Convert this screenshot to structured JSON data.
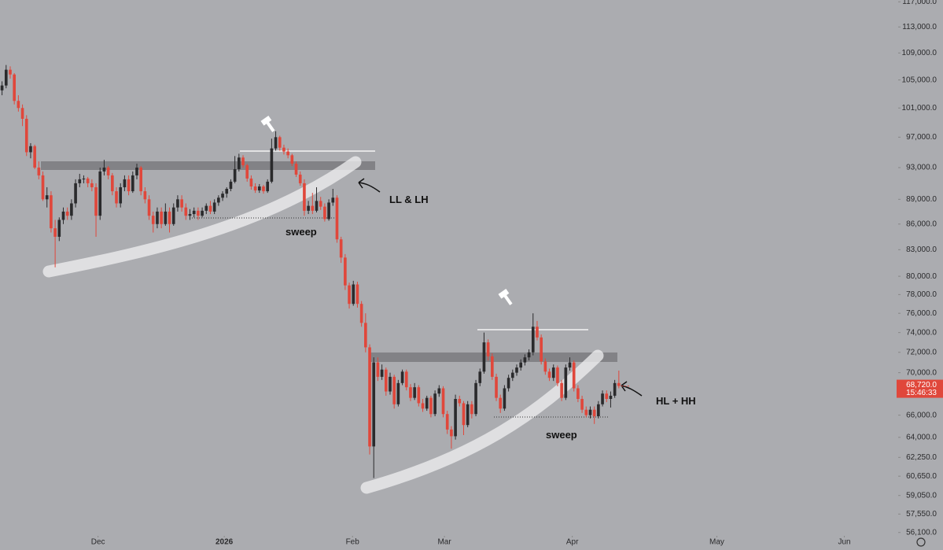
{
  "chart_data": {
    "type": "candlestick",
    "ohlc": [
      [
        103500,
        104800,
        102800,
        104200
      ],
      [
        104200,
        107200,
        103800,
        106500
      ],
      [
        106500,
        107000,
        105200,
        105800
      ],
      [
        105800,
        106000,
        101500,
        102000
      ],
      [
        102000,
        102800,
        100500,
        101000
      ],
      [
        101000,
        101500,
        98500,
        99500
      ],
      [
        99500,
        100000,
        94500,
        95000
      ],
      [
        95000,
        96200,
        94200,
        95800
      ],
      [
        95800,
        96000,
        92800,
        93000
      ],
      [
        93000,
        93800,
        91500,
        92000
      ],
      [
        92000,
        92500,
        88800,
        89000
      ],
      [
        89000,
        90500,
        88000,
        89500
      ],
      [
        89500,
        90000,
        85000,
        85500
      ],
      [
        85500,
        86500,
        81000,
        84500
      ],
      [
        84500,
        86800,
        84000,
        86500
      ],
      [
        86500,
        88000,
        86000,
        87500
      ],
      [
        87500,
        88000,
        86500,
        87000
      ],
      [
        87000,
        89000,
        86500,
        88500
      ],
      [
        88500,
        91500,
        88000,
        91000
      ],
      [
        91000,
        92200,
        90500,
        91500
      ],
      [
        91500,
        92000,
        91000,
        91600
      ],
      [
        91600,
        91800,
        90500,
        91000
      ],
      [
        91000,
        91500,
        90000,
        90500
      ],
      [
        90500,
        91000,
        84500,
        87000
      ],
      [
        87000,
        93000,
        86500,
        92500
      ],
      [
        92500,
        94000,
        92000,
        93000
      ],
      [
        93000,
        93200,
        91500,
        92000
      ],
      [
        92000,
        92300,
        89500,
        90000
      ],
      [
        90000,
        90500,
        88000,
        88500
      ],
      [
        88500,
        91000,
        88000,
        90500
      ],
      [
        90500,
        92000,
        90000,
        91500
      ],
      [
        91500,
        92000,
        89500,
        90000
      ],
      [
        90000,
        92500,
        89800,
        92000
      ],
      [
        92000,
        93500,
        91500,
        93000
      ],
      [
        93000,
        93200,
        89500,
        90000
      ],
      [
        90000,
        90500,
        88500,
        89000
      ],
      [
        89000,
        89500,
        86500,
        87000
      ],
      [
        87000,
        87500,
        85000,
        86000
      ],
      [
        86000,
        88000,
        85500,
        87500
      ],
      [
        87500,
        88000,
        85500,
        86000
      ],
      [
        86000,
        88500,
        85800,
        87500
      ],
      [
        87500,
        88000,
        85000,
        86000
      ],
      [
        86000,
        88500,
        85800,
        88000
      ],
      [
        88000,
        89500,
        87500,
        89000
      ],
      [
        89000,
        89500,
        87500,
        88000
      ],
      [
        88000,
        88500,
        86500,
        87000
      ],
      [
        87000,
        87800,
        86500,
        87200
      ],
      [
        87200,
        88000,
        86800,
        87600
      ],
      [
        87600,
        88000,
        86500,
        87000
      ],
      [
        87000,
        88000,
        86800,
        87600
      ],
      [
        87600,
        88500,
        87200,
        88200
      ],
      [
        88200,
        88800,
        87200,
        87500
      ],
      [
        87500,
        89000,
        87200,
        88600
      ],
      [
        88600,
        89500,
        88200,
        89200
      ],
      [
        89200,
        90000,
        88800,
        89700
      ],
      [
        89700,
        90500,
        89200,
        90300
      ],
      [
        90300,
        91500,
        90000,
        91200
      ],
      [
        91200,
        94500,
        91000,
        92800
      ],
      [
        92800,
        94800,
        92500,
        94300
      ],
      [
        94300,
        94600,
        93000,
        93300
      ],
      [
        93300,
        93500,
        91200,
        91600
      ],
      [
        91600,
        92000,
        90200,
        90600
      ],
      [
        90600,
        91000,
        89800,
        90100
      ],
      [
        90100,
        90900,
        89800,
        90600
      ],
      [
        90600,
        90800,
        89700,
        90000
      ],
      [
        90000,
        91500,
        89800,
        91200
      ],
      [
        91200,
        96800,
        91000,
        95500
      ],
      [
        95500,
        97800,
        95200,
        97000
      ],
      [
        97000,
        97200,
        95200,
        95600
      ],
      [
        95600,
        96000,
        94700,
        95100
      ],
      [
        95100,
        95500,
        94200,
        94600
      ],
      [
        94600,
        94800,
        93200,
        93500
      ],
      [
        93500,
        93800,
        91800,
        92100
      ],
      [
        92100,
        92500,
        90700,
        91000
      ],
      [
        91000,
        91500,
        87000,
        87600
      ],
      [
        87600,
        88800,
        87200,
        88200
      ],
      [
        88200,
        89800,
        87200,
        87600
      ],
      [
        87600,
        90500,
        87400,
        88800
      ],
      [
        88800,
        89300,
        87700,
        88100
      ],
      [
        88100,
        88500,
        86300,
        86600
      ],
      [
        86600,
        89000,
        86400,
        88600
      ],
      [
        88600,
        90300,
        88200,
        89200
      ],
      [
        89200,
        89500,
        83800,
        84200
      ],
      [
        84200,
        84500,
        81500,
        82100
      ],
      [
        82100,
        82500,
        78500,
        79000
      ],
      [
        79000,
        79300,
        76500,
        77000
      ],
      [
        77000,
        79500,
        76800,
        79100
      ],
      [
        79100,
        79400,
        76600,
        77000
      ],
      [
        77000,
        77300,
        74600,
        75000
      ],
      [
        75000,
        76000,
        72000,
        72500
      ],
      [
        72500,
        72800,
        62500,
        63200
      ],
      [
        63200,
        71500,
        60500,
        71000
      ],
      [
        71000,
        71500,
        69200,
        69600
      ],
      [
        69600,
        70800,
        69300,
        70300
      ],
      [
        70300,
        70500,
        67800,
        68200
      ],
      [
        68200,
        70000,
        67900,
        69600
      ],
      [
        69600,
        69800,
        66600,
        67000
      ],
      [
        67000,
        69300,
        66800,
        69000
      ],
      [
        69000,
        70300,
        68800,
        70100
      ],
      [
        70100,
        70300,
        68300,
        68600
      ],
      [
        68600,
        68900,
        67300,
        67600
      ],
      [
        67600,
        69000,
        67400,
        68600
      ],
      [
        68600,
        68800,
        66800,
        67100
      ],
      [
        67100,
        67500,
        66300,
        66600
      ],
      [
        66600,
        67800,
        66400,
        67600
      ],
      [
        67600,
        67800,
        65800,
        66100
      ],
      [
        66100,
        68300,
        65900,
        68000
      ],
      [
        68000,
        68800,
        67700,
        68500
      ],
      [
        68500,
        68700,
        65800,
        66100
      ],
      [
        66100,
        66400,
        64300,
        64700
      ],
      [
        64700,
        65000,
        63000,
        64100
      ],
      [
        64100,
        67900,
        63800,
        67500
      ],
      [
        67500,
        67800,
        66800,
        67100
      ],
      [
        67100,
        67300,
        64200,
        65100
      ],
      [
        65100,
        67300,
        64900,
        67000
      ],
      [
        67000,
        67300,
        65700,
        66100
      ],
      [
        66100,
        69300,
        65900,
        69000
      ],
      [
        69000,
        70400,
        68700,
        70100
      ],
      [
        70100,
        74000,
        69900,
        73000
      ],
      [
        73000,
        73300,
        71200,
        71600
      ],
      [
        71600,
        71900,
        69300,
        69600
      ],
      [
        69600,
        69900,
        67300,
        67600
      ],
      [
        67600,
        67900,
        66200,
        66600
      ],
      [
        66600,
        68800,
        66400,
        68500
      ],
      [
        68500,
        69800,
        68200,
        69500
      ],
      [
        69500,
        70300,
        69200,
        70000
      ],
      [
        70000,
        70800,
        69700,
        70500
      ],
      [
        70500,
        71300,
        70200,
        71000
      ],
      [
        71000,
        71800,
        70700,
        71500
      ],
      [
        71500,
        72300,
        71200,
        72000
      ],
      [
        72000,
        76000,
        71700,
        74600
      ],
      [
        74600,
        75200,
        73200,
        73500
      ],
      [
        73500,
        73800,
        70800,
        71100
      ],
      [
        71100,
        71400,
        69800,
        70100
      ],
      [
        70100,
        70400,
        69200,
        69500
      ],
      [
        69500,
        70800,
        69200,
        70500
      ],
      [
        70500,
        70700,
        68700,
        69000
      ],
      [
        69000,
        69300,
        67300,
        67600
      ],
      [
        67600,
        70800,
        67400,
        70500
      ],
      [
        70500,
        71500,
        70200,
        71000
      ],
      [
        71000,
        71200,
        68200,
        68500
      ],
      [
        68500,
        68800,
        67200,
        67500
      ],
      [
        67500,
        67800,
        66200,
        66500
      ],
      [
        66500,
        66800,
        65800,
        66000
      ],
      [
        66000,
        66800,
        65700,
        66500
      ],
      [
        66500,
        66800,
        65200,
        65900
      ],
      [
        65900,
        67300,
        65700,
        67000
      ],
      [
        67000,
        68300,
        66800,
        68000
      ],
      [
        68000,
        68300,
        67200,
        67500
      ],
      [
        67500,
        68200,
        66700,
        67800
      ],
      [
        67800,
        69300,
        67600,
        69000
      ],
      [
        69000,
        70200,
        68500,
        68720
      ]
    ],
    "up_color": "#2a2a2c",
    "down_color": "#e0473b",
    "log_scale": true,
    "ylim": [
      55900,
      117300
    ],
    "yticks": [
      {
        "value": 117000,
        "label": "117,000.0"
      },
      {
        "value": 113000,
        "label": "113,000.0"
      },
      {
        "value": 109000,
        "label": "109,000.0"
      },
      {
        "value": 105000,
        "label": "105,000.0"
      },
      {
        "value": 101000,
        "label": "101,000.0"
      },
      {
        "value": 97000,
        "label": "97,000.0"
      },
      {
        "value": 93000,
        "label": "93,000.0"
      },
      {
        "value": 89000,
        "label": "89,000.0"
      },
      {
        "value": 86000,
        "label": "86,000.0"
      },
      {
        "value": 83000,
        "label": "83,000.0"
      },
      {
        "value": 80000,
        "label": "80,000.0"
      },
      {
        "value": 78000,
        "label": "78,000.0"
      },
      {
        "value": 76000,
        "label": "76,000.0"
      },
      {
        "value": 74000,
        "label": "74,000.0"
      },
      {
        "value": 72000,
        "label": "72,000.0"
      },
      {
        "value": 70000,
        "label": "70,000.0"
      },
      {
        "value": 66000,
        "label": "66,000.0"
      },
      {
        "value": 64000,
        "label": "64,000.0"
      },
      {
        "value": 62250,
        "label": "62,250.0"
      },
      {
        "value": 60650,
        "label": "60,650.0"
      },
      {
        "value": 59050,
        "label": "59,050.0"
      },
      {
        "value": 57550,
        "label": "57,550.0"
      },
      {
        "value": 56100,
        "label": "56,100.0"
      }
    ],
    "xlim": [
      -0.5,
      219
    ],
    "xticks": [
      {
        "value": 23.5,
        "label": "Dec"
      },
      {
        "value": 54.4,
        "label": "2026"
      },
      {
        "value": 85.8,
        "label": "Feb"
      },
      {
        "value": 108.3,
        "label": "Mar"
      },
      {
        "value": 139.6,
        "label": "Apr"
      },
      {
        "value": 175,
        "label": "May"
      },
      {
        "value": 206.2,
        "label": "Jun"
      }
    ],
    "price_label": {
      "value": 68720,
      "label": "68,720.0"
    },
    "countdown": "15:46:33",
    "annotations": [
      "LL & LH",
      "sweep",
      "sweep",
      "HL + HH"
    ]
  }
}
